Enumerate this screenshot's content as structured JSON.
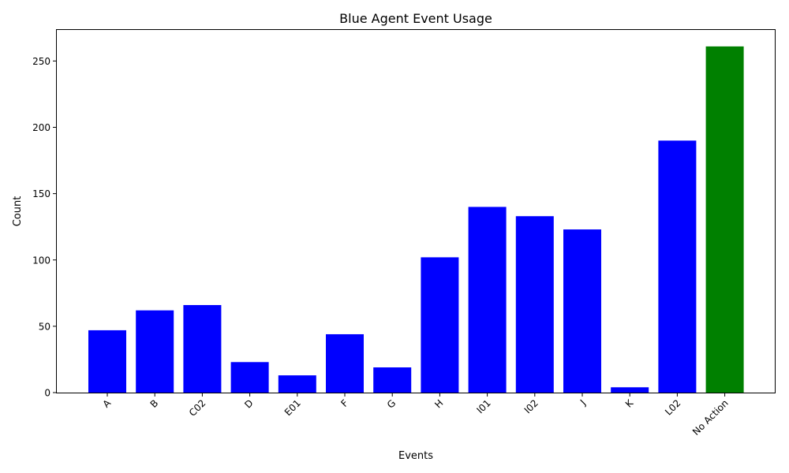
{
  "chart_data": {
    "type": "bar",
    "title": "Blue Agent Event Usage",
    "xlabel": "Events",
    "ylabel": "Count",
    "categories": [
      "A",
      "B",
      "C02",
      "D",
      "E01",
      "F",
      "G",
      "H",
      "I01",
      "I02",
      "J",
      "K",
      "L02",
      "No Action"
    ],
    "values": [
      47,
      62,
      66,
      23,
      13,
      44,
      19,
      102,
      140,
      133,
      123,
      4,
      190,
      261
    ],
    "bar_colors": [
      "#0000ff",
      "#0000ff",
      "#0000ff",
      "#0000ff",
      "#0000ff",
      "#0000ff",
      "#0000ff",
      "#0000ff",
      "#0000ff",
      "#0000ff",
      "#0000ff",
      "#0000ff",
      "#0000ff",
      "#008000"
    ],
    "ylim": [
      0,
      274
    ],
    "yticks": [
      0,
      50,
      100,
      150,
      200,
      250
    ],
    "grid": false,
    "xtick_rotation": 45
  }
}
